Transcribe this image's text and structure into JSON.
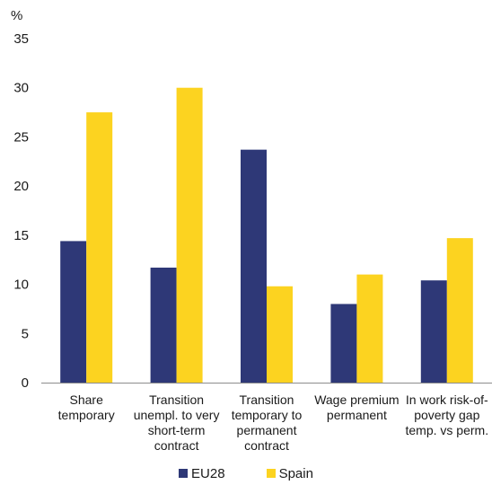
{
  "chart_data": {
    "type": "bar",
    "unit_label": "%",
    "ylim": [
      0,
      35
    ],
    "yticks": [
      0,
      5,
      10,
      15,
      20,
      25,
      30,
      35
    ],
    "categories": [
      [
        "Share",
        "temporary"
      ],
      [
        "Transition",
        "unempl. to very",
        "short-term",
        "contract"
      ],
      [
        "Transition",
        "temporary to",
        "permanent",
        "contract"
      ],
      [
        "Wage premium",
        "permanent"
      ],
      [
        "In work risk-of-",
        "poverty gap",
        "temp. vs perm."
      ]
    ],
    "series": [
      {
        "name": "EU28",
        "color": "#2e3877",
        "values": [
          14.4,
          11.7,
          23.7,
          8.0,
          10.4
        ]
      },
      {
        "name": "Spain",
        "color": "#fcd320",
        "values": [
          27.5,
          30.0,
          9.8,
          11.0,
          14.7
        ]
      }
    ],
    "legend_position": "bottom",
    "grid": false
  }
}
